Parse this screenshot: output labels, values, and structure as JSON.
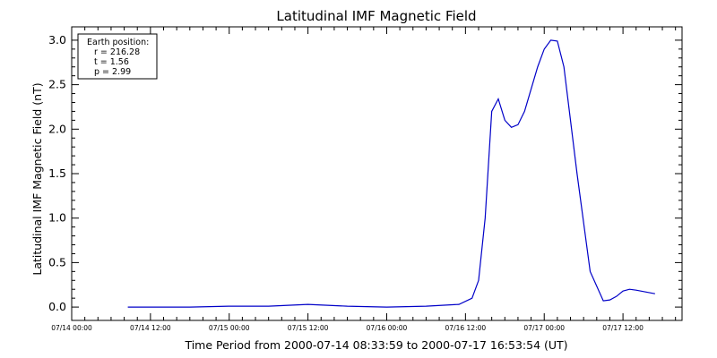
{
  "chart_data": {
    "type": "line",
    "title": "Latitudinal IMF Magnetic Field",
    "xlabel": "Time Period from 2000-07-14 08:33:59 to 2000-07-17 16:53:54 (UT)",
    "ylabel": "Latitudinal IMF Magnetic Field (nT)",
    "ylim": [
      -0.15,
      3.15
    ],
    "xlim": [
      "2000-07-14 00:00",
      "2000-07-17 21:00"
    ],
    "yticks": [
      "0.0",
      "0.5",
      "1.0",
      "1.5",
      "2.0",
      "2.5",
      "3.0"
    ],
    "xticks": [
      "07/14 00:00",
      "07/14 12:00",
      "07/15 00:00",
      "07/15 12:00",
      "07/16 00:00",
      "07/16 12:00",
      "07/17 00:00",
      "07/17 12:00"
    ],
    "grid": false,
    "line_color": "#0000c8",
    "legend": {
      "placement": "top-left",
      "title": "Earth position:",
      "lines": [
        "r = 216.28",
        "t = 1.56",
        "p = 2.99"
      ]
    },
    "series": [
      {
        "x": [
          "2000-07-14 08:33",
          "2000-07-14 12:00",
          "2000-07-14 18:00",
          "2000-07-15 00:00",
          "2000-07-15 06:00",
          "2000-07-15 09:00",
          "2000-07-15 12:00",
          "2000-07-15 18:00",
          "2000-07-16 00:00",
          "2000-07-16 06:00",
          "2000-07-16 11:00",
          "2000-07-16 13:00",
          "2000-07-16 14:00",
          "2000-07-16 15:00",
          "2000-07-16 16:00",
          "2000-07-16 17:00",
          "2000-07-16 18:00",
          "2000-07-16 19:00",
          "2000-07-16 20:00",
          "2000-07-16 21:00",
          "2000-07-16 22:00",
          "2000-07-16 23:00",
          "2000-07-17 00:00",
          "2000-07-17 01:00",
          "2000-07-17 02:00",
          "2000-07-17 03:00",
          "2000-07-17 05:00",
          "2000-07-17 07:00",
          "2000-07-17 09:00",
          "2000-07-17 10:00",
          "2000-07-17 11:00",
          "2000-07-17 12:00",
          "2000-07-17 13:00",
          "2000-07-17 14:00",
          "2000-07-17 16:53"
        ],
        "y": [
          0.0,
          0.0,
          0.0,
          0.01,
          0.01,
          0.02,
          0.03,
          0.01,
          0.0,
          0.01,
          0.03,
          0.1,
          0.3,
          1.0,
          2.2,
          2.34,
          2.1,
          2.02,
          2.05,
          2.2,
          2.45,
          2.7,
          2.9,
          3.0,
          2.99,
          2.7,
          1.5,
          0.4,
          0.07,
          0.08,
          0.12,
          0.18,
          0.2,
          0.19,
          0.15
        ]
      }
    ]
  }
}
